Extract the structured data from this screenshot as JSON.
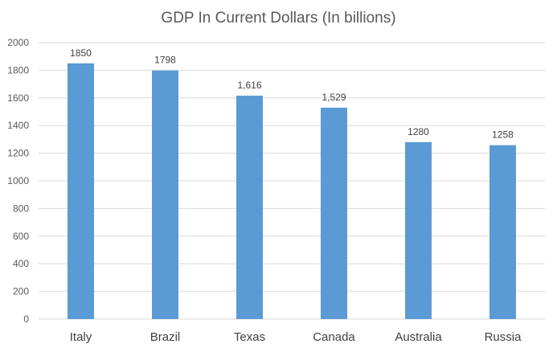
{
  "chart_data": {
    "type": "bar",
    "title": "GDP In Current Dollars (In billions)",
    "xlabel": "",
    "ylabel": "",
    "categories": [
      "Italy",
      "Brazil",
      "Texas",
      "Canada",
      "Australia",
      "Russia"
    ],
    "values": [
      1850,
      1798,
      1616,
      1529,
      1280,
      1258
    ],
    "data_labels": [
      "1850",
      "1798",
      "1,616",
      "1,529",
      "1280",
      "1258"
    ],
    "ylim": [
      0,
      2000
    ],
    "yticks": [
      "0",
      "200",
      "400",
      "600",
      "800",
      "1000",
      "1200",
      "1400",
      "1600",
      "1800",
      "2000"
    ],
    "grid": true,
    "legend": "none",
    "bar_color": "#5B9BD5",
    "grid_color": "#D9D9D9"
  }
}
